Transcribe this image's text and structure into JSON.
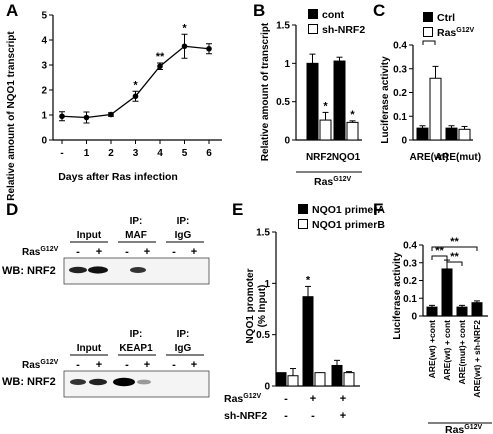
{
  "panels": {
    "A": "A",
    "B": "B",
    "C": "C",
    "D": "D",
    "E": "E",
    "F": "F"
  },
  "chart_data": [
    {
      "panel": "A",
      "type": "line",
      "ylabel": "Relative amount of NQO1 transcript",
      "xlabel": "Days after Ras infection",
      "categories": [
        "-",
        "1",
        "2",
        "3",
        "4",
        "5",
        "6"
      ],
      "values": [
        0.95,
        0.9,
        1.02,
        1.75,
        2.95,
        3.75,
        3.65
      ],
      "errors": [
        0.18,
        0.22,
        0.07,
        0.2,
        0.13,
        0.48,
        0.2
      ],
      "ylim": [
        0,
        5
      ],
      "yticks": [
        "0",
        "1",
        "2",
        "3",
        "4",
        "5"
      ],
      "annotations": [
        "",
        "",
        "",
        "*",
        "**",
        "*",
        ""
      ]
    },
    {
      "panel": "B",
      "type": "bar",
      "ylabel": "Relative amount of transcript",
      "categories": [
        "NRF2",
        "NQO1"
      ],
      "group_label": "Ras",
      "group_label_sup": "G12V",
      "legend": [
        "cont",
        "sh-NRF2"
      ],
      "series": [
        {
          "name": "cont",
          "values": [
            1.0,
            1.03
          ],
          "errors": [
            0.12,
            0.05
          ]
        },
        {
          "name": "sh-NRF2",
          "values": [
            0.26,
            0.23
          ],
          "errors": [
            0.1,
            0.02
          ]
        }
      ],
      "ylim": [
        0,
        1.5
      ],
      "yticks": [
        "0",
        "0.5",
        "1",
        "1.5"
      ],
      "annotations": [
        "*",
        "*"
      ]
    },
    {
      "panel": "C",
      "type": "bar",
      "ylabel": "Luciferase activity",
      "categories": [
        "ARE(wt)",
        "ARE(mut)"
      ],
      "legend_ctrl": "Ctrl",
      "legend_ras": "Ras",
      "legend_ras_sup": "G12V",
      "series": [
        {
          "name": "Ctrl",
          "values": [
            0.05,
            0.05
          ],
          "errors": [
            0.01,
            0.01
          ]
        },
        {
          "name": "Ras",
          "values": [
            0.26,
            0.045
          ],
          "errors": [
            0.05,
            0.012
          ]
        }
      ],
      "ylim": [
        0,
        0.4
      ],
      "yticks": [
        "0",
        "0.1",
        "0.2",
        "0.3",
        "0.4"
      ],
      "annotations": [
        "**"
      ]
    },
    {
      "panel": "E",
      "type": "bar",
      "ylabel_line1": "NQO1 promoter",
      "ylabel_line2": "(% Input)",
      "legend": [
        "NQO1 primerA",
        "NQO1 primerB"
      ],
      "series": [
        {
          "name": "NQO1 primerA",
          "values": [
            0.13,
            0.87,
            0.2
          ],
          "errors": [
            0.0,
            0.1,
            0.05
          ]
        },
        {
          "name": "NQO1 primerB",
          "values": [
            0.1,
            0.13,
            0.13
          ],
          "errors": [
            0.07,
            0.0,
            0.01
          ]
        }
      ],
      "row1_label": "Ras",
      "row1_sup": "G12V",
      "row1": [
        "-",
        "+",
        "+"
      ],
      "row2_label": "sh-NRF2",
      "row2": [
        "-",
        "-",
        "+"
      ],
      "ylim": [
        0,
        1.5
      ],
      "yticks": [
        "0",
        "0.5",
        "1",
        "1.5"
      ],
      "annotations": [
        "",
        "*",
        ""
      ]
    },
    {
      "panel": "F",
      "type": "bar",
      "ylabel": "Luciferase activity",
      "categories": [
        "ARE(wt) +cont",
        "ARE(wt) + cont",
        "ARE(mut)+ cont",
        "ARE(wt) + sh-NRF2"
      ],
      "values": [
        0.05,
        0.265,
        0.05,
        0.075
      ],
      "errors": [
        0.01,
        0.05,
        0.01,
        0.01
      ],
      "ylim": [
        0,
        0.4
      ],
      "yticks": [
        "0",
        "0.1",
        "0.2",
        "0.3",
        "0.4"
      ],
      "brackets": [
        "**",
        "**",
        "**"
      ],
      "group_label": "Ras",
      "group_label_sup": "G12V"
    }
  ],
  "blot": {
    "top": {
      "col_input": "Input",
      "col_ip_maf_1": "IP:",
      "col_ip_maf_2": "MAF",
      "col_ip_igg_1": "IP:",
      "col_ip_igg_2": "IgG",
      "ras_label": "Ras",
      "ras_sup": "G12V",
      "signs": [
        "-",
        "+",
        "-",
        "+",
        "-",
        "+"
      ],
      "wb_label": "WB: NRF2"
    },
    "bottom": {
      "col_input": "Input",
      "col_ip_keap_1": "IP:",
      "col_ip_keap_2": "KEAP1",
      "col_ip_igg_1": "IP:",
      "col_ip_igg_2": "IgG",
      "ras_label": "Ras",
      "ras_sup": "G12V",
      "signs": [
        "-",
        "+",
        "-",
        "+",
        "-",
        "+"
      ],
      "wb_label": "WB: NRF2"
    }
  }
}
